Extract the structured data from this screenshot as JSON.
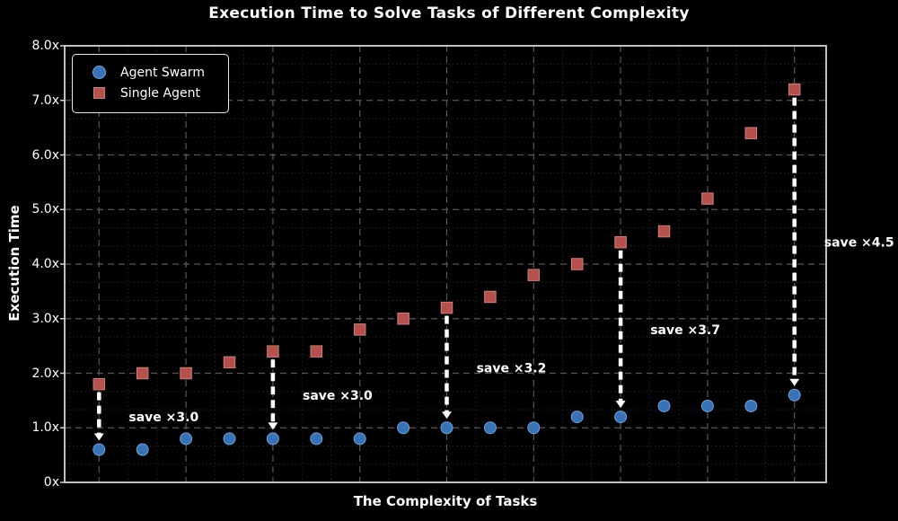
{
  "figure": {
    "title": "Execution Time to Solve Tasks of Different Complexity",
    "xlabel": "The Complexity of Tasks",
    "ylabel": "Execution Time",
    "background": "#000000",
    "text_color": "#ffffff"
  },
  "legend": {
    "position": "upper left",
    "items": [
      {
        "label": "Agent Swarm",
        "marker": "circle",
        "color": "#3873b8",
        "edge": "#6fa0d4"
      },
      {
        "label": "Single Agent",
        "marker": "square",
        "color": "#b5504c",
        "edge": "#cf7f7a"
      }
    ]
  },
  "chart_data": {
    "type": "scatter",
    "title": "Execution Time to Solve Tasks of Different Complexity",
    "xlabel": "The Complexity of Tasks",
    "ylabel": "Execution Time",
    "ylim": [
      0,
      8
    ],
    "grid": true,
    "legend_position": "upper left",
    "x": [
      1,
      2,
      3,
      4,
      5,
      6,
      7,
      8,
      9,
      10,
      11,
      12,
      13,
      14,
      15,
      16,
      17
    ],
    "series": [
      {
        "name": "Agent Swarm",
        "marker": "circle",
        "color": "#3873b8",
        "edge": "#6fa0d4",
        "values": [
          0.6,
          0.6,
          0.8,
          0.8,
          0.8,
          0.8,
          0.8,
          1.0,
          1.0,
          1.0,
          1.0,
          1.2,
          1.2,
          1.4,
          1.4,
          1.4,
          1.6
        ]
      },
      {
        "name": "Single Agent",
        "marker": "square",
        "color": "#b5504c",
        "edge": "#cf7f7a",
        "values": [
          1.8,
          2.0,
          2.0,
          2.2,
          2.4,
          2.4,
          2.8,
          3.0,
          3.2,
          3.4,
          3.8,
          4.0,
          4.4,
          4.6,
          5.2,
          6.4,
          7.2
        ]
      }
    ],
    "y_ticks": [
      {
        "value": 0,
        "label": "0x"
      },
      {
        "value": 1,
        "label": "1.0x"
      },
      {
        "value": 2,
        "label": "2.0x"
      },
      {
        "value": 3,
        "label": "3.0x"
      },
      {
        "value": 4,
        "label": "4.0x"
      },
      {
        "value": 5,
        "label": "5.0x"
      },
      {
        "value": 6,
        "label": "6.0x"
      },
      {
        "value": 7,
        "label": "7.0x"
      },
      {
        "value": 8,
        "label": "8.0x"
      }
    ],
    "annotations": [
      {
        "text": "save ×3.0",
        "point_index": 0
      },
      {
        "text": "save ×3.0",
        "point_index": 4
      },
      {
        "text": "save ×3.2",
        "point_index": 8
      },
      {
        "text": "save ×3.7",
        "point_index": 12
      },
      {
        "text": "save ×4.5",
        "point_index": 16
      }
    ],
    "arrow_color": "#ffffff",
    "grid_major_color": "#585858",
    "grid_minor_color": "#242424",
    "border_color": "#d4d4d4"
  }
}
